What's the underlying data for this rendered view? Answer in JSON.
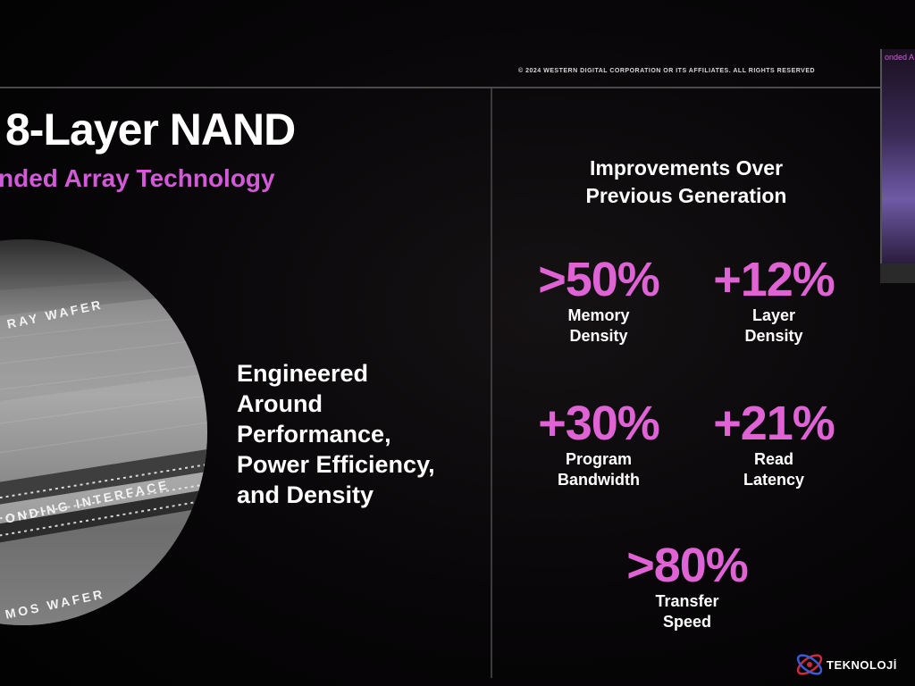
{
  "copyright": "© 2024 WESTERN DIGITAL CORPORATION OR ITS AFFILIATES. ALL RIGHTS RESERVED",
  "slide": {
    "title": "8-Layer NAND",
    "subtitle": "nded Array Technology"
  },
  "wafer": {
    "top_label": "RAY WAFER",
    "middle_label": "ONDING INTERFACE",
    "bottom_label": "MOS WAFER"
  },
  "engineered": {
    "lines": [
      "Engineered",
      "Around",
      "Performance,",
      "Power Efficiency,",
      "and Density"
    ]
  },
  "improvements": {
    "title_line1": "Improvements Over",
    "title_line2": "Previous Generation",
    "stats": [
      {
        "value": ">50%",
        "label1": "Memory",
        "label2": "Density"
      },
      {
        "value": "+12%",
        "label1": "Layer",
        "label2": "Density"
      },
      {
        "value": "+30%",
        "label1": "Program",
        "label2": "Bandwidth"
      },
      {
        "value": "+21%",
        "label1": "Read",
        "label2": "Latency"
      },
      {
        "value": ">80%",
        "label1": "Transfer",
        "label2": "Speed"
      }
    ]
  },
  "thumbnail": {
    "text": "onded A"
  },
  "watermark": {
    "brand": "TEKNOLOJİ"
  },
  "colors": {
    "accent": "#e063d6",
    "subtitle": "#d25ad8",
    "background": "#050405"
  }
}
